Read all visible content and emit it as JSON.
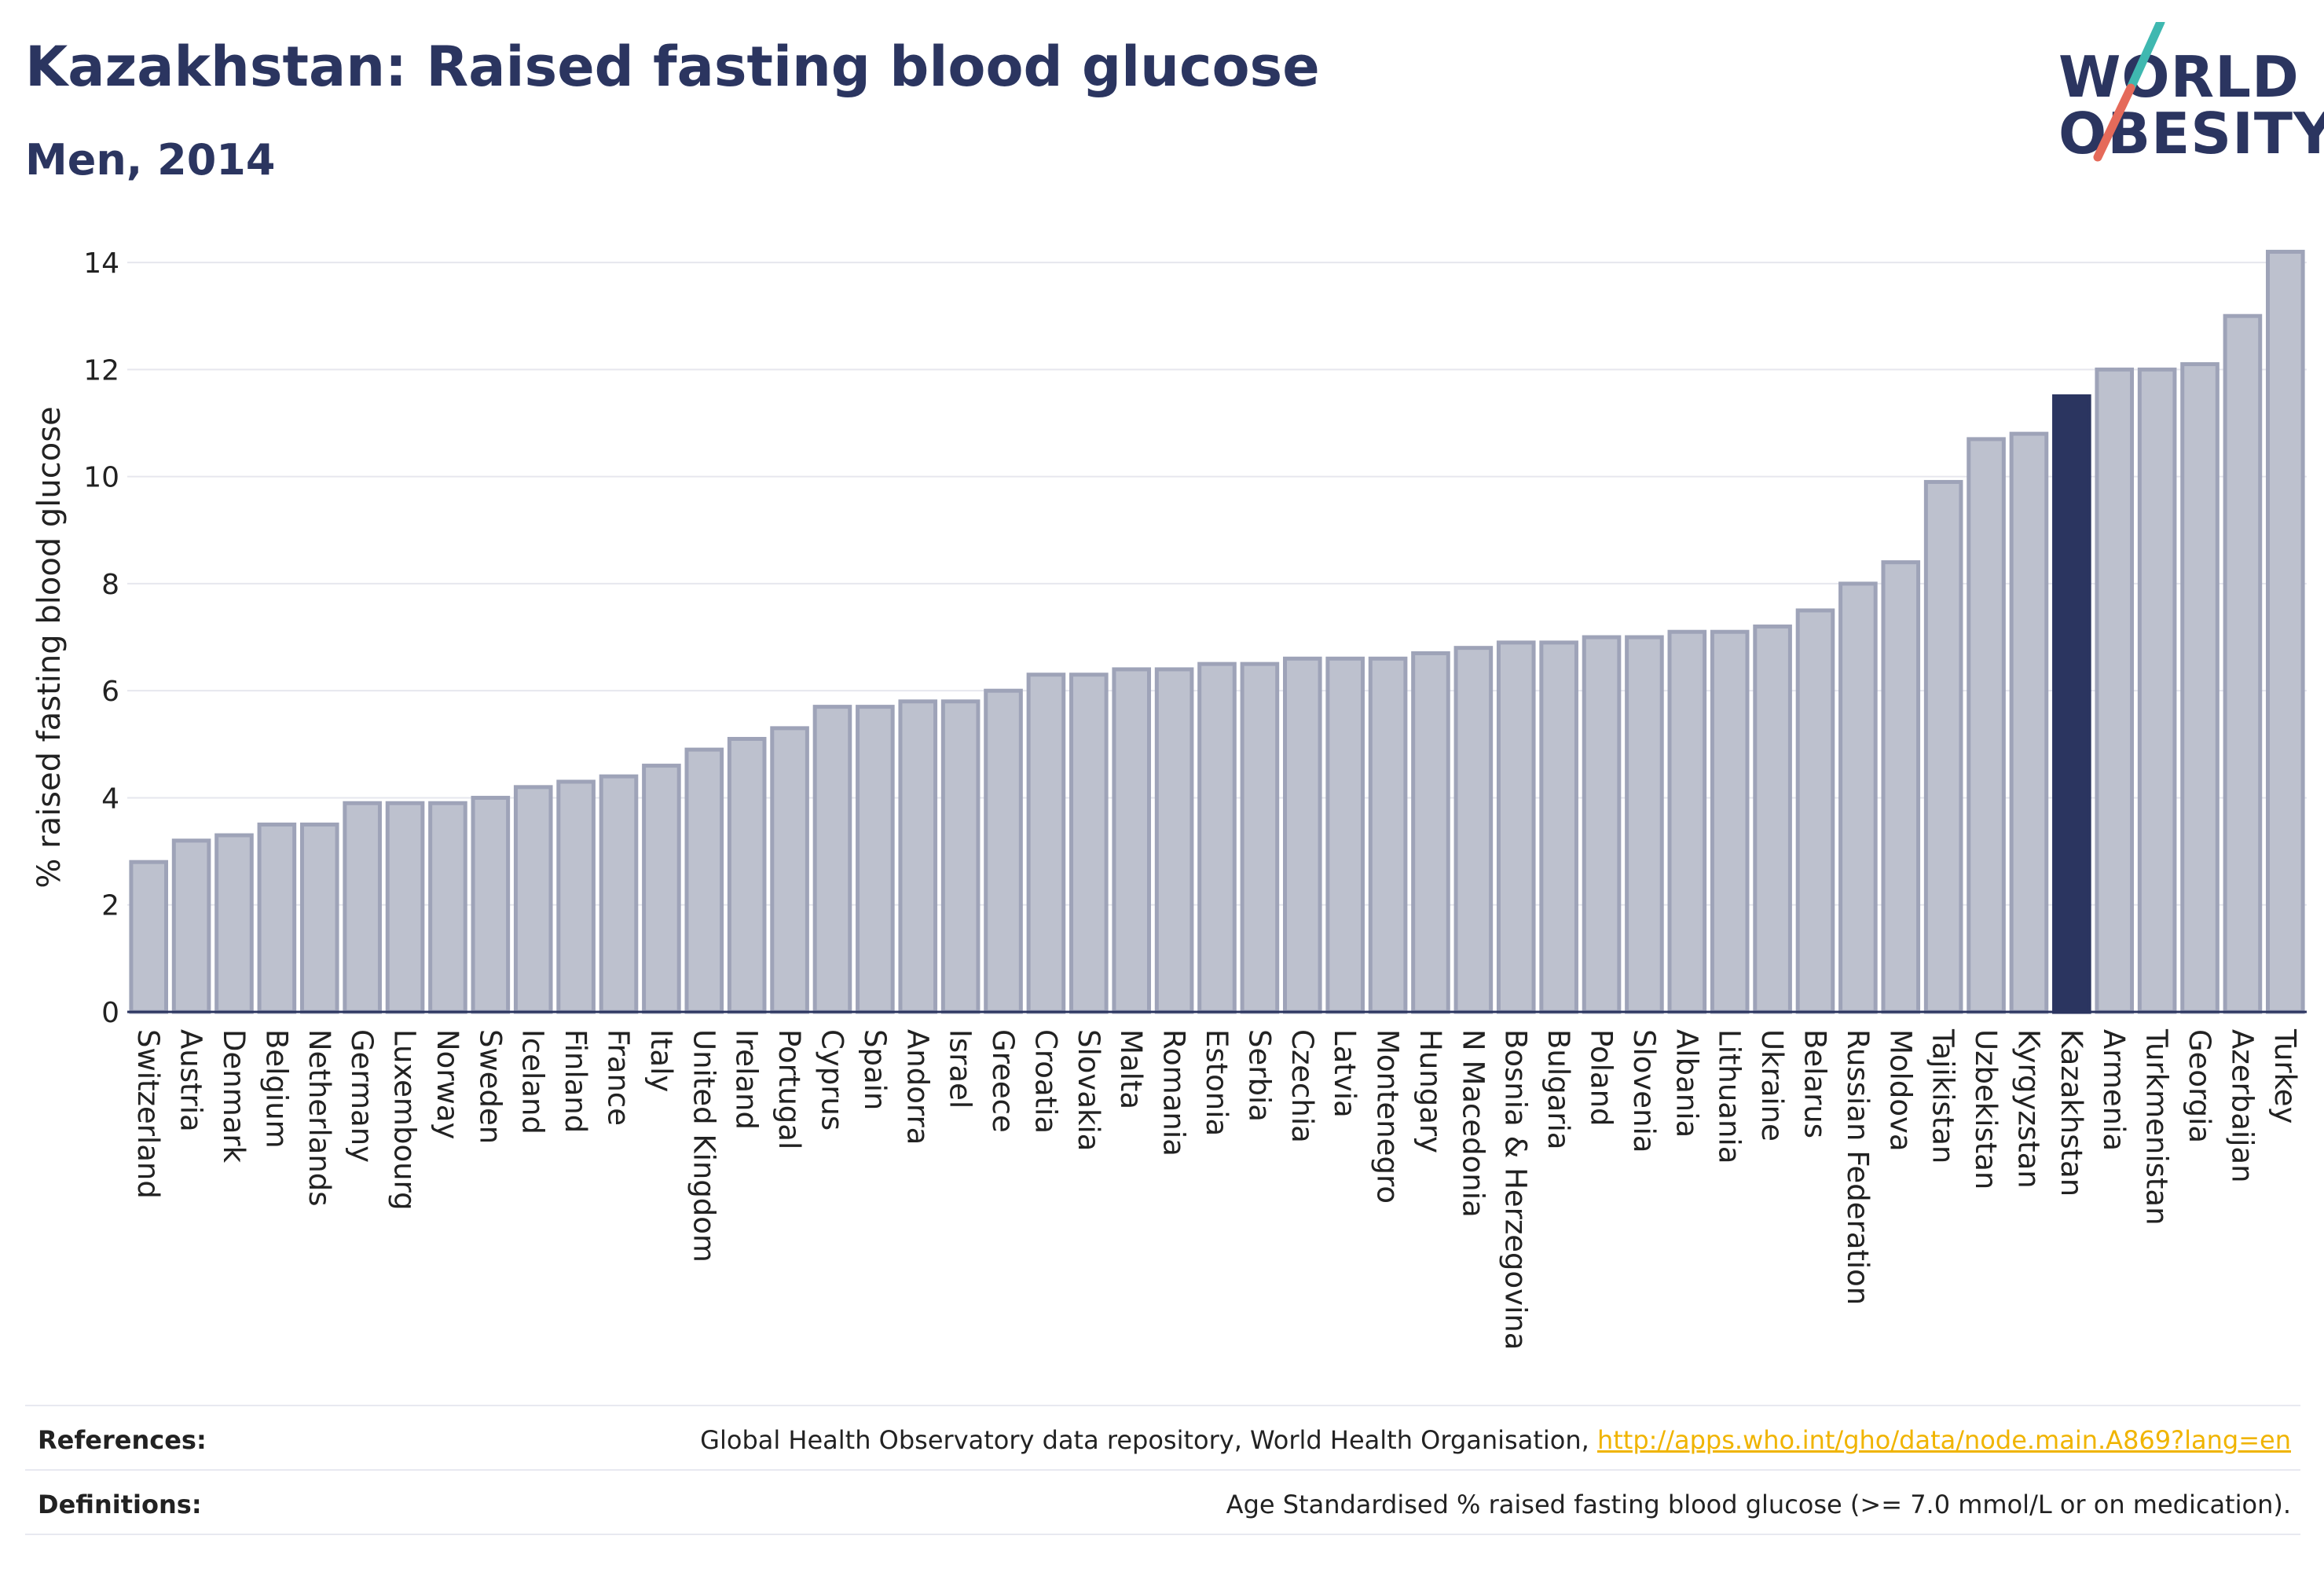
{
  "header": {
    "title": "Kazakhstan: Raised fasting blood glucose",
    "subtitle": "Men, 2014"
  },
  "logo": {
    "line1": "WORLD",
    "line2": "OBESITY"
  },
  "colors": {
    "bar": "#bdc1ce",
    "bar_stroke": "#9ea3b8",
    "highlight": "#2b3560",
    "text": "#2b3560",
    "link": "#f0b400"
  },
  "chart_data": {
    "type": "bar",
    "ylabel": "% raised fasting blood glucose",
    "ylim": [
      0,
      14.5
    ],
    "yticks": [
      0,
      2,
      4,
      6,
      8,
      10,
      12,
      14
    ],
    "grid": true,
    "highlight": "Kazakhstan",
    "categories": [
      "Switzerland",
      "Austria",
      "Denmark",
      "Belgium",
      "Netherlands",
      "Germany",
      "Luxembourg",
      "Norway",
      "Sweden",
      "Iceland",
      "Finland",
      "France",
      "Italy",
      "United Kingdom",
      "Ireland",
      "Portugal",
      "Cyprus",
      "Spain",
      "Andorra",
      "Israel",
      "Greece",
      "Croatia",
      "Slovakia",
      "Malta",
      "Romania",
      "Estonia",
      "Serbia",
      "Czechia",
      "Latvia",
      "Montenegro",
      "Hungary",
      "N Macedonia",
      "Bosnia & Herzegovina",
      "Bulgaria",
      "Poland",
      "Slovenia",
      "Albania",
      "Lithuania",
      "Ukraine",
      "Belarus",
      "Russian Federation",
      "Moldova",
      "Tajikistan",
      "Uzbekistan",
      "Kyrgyzstan",
      "Kazakhstan",
      "Armenia",
      "Turkmenistan",
      "Georgia",
      "Azerbaijan",
      "Turkey"
    ],
    "values": [
      2.8,
      3.2,
      3.3,
      3.5,
      3.5,
      3.9,
      3.9,
      3.9,
      4.0,
      4.2,
      4.3,
      4.4,
      4.6,
      4.9,
      5.1,
      5.3,
      5.7,
      5.7,
      5.8,
      5.8,
      6.0,
      6.3,
      6.3,
      6.4,
      6.4,
      6.5,
      6.5,
      6.6,
      6.6,
      6.6,
      6.7,
      6.8,
      6.9,
      6.9,
      7.0,
      7.0,
      7.1,
      7.1,
      7.2,
      7.5,
      8.0,
      8.4,
      9.9,
      10.7,
      10.8,
      11.5,
      12.0,
      12.0,
      12.1,
      13.0,
      14.2
    ]
  },
  "footer": {
    "references_label": "References:",
    "references_text": "Global Health Observatory data repository, World Health Organisation, ",
    "references_link": "http://apps.who.int/gho/data/node.main.A869?lang=en",
    "definitions_label": "Definitions:",
    "definitions_text": "Age Standardised % raised fasting blood glucose (>= 7.0 mmol/L or on medication)."
  }
}
